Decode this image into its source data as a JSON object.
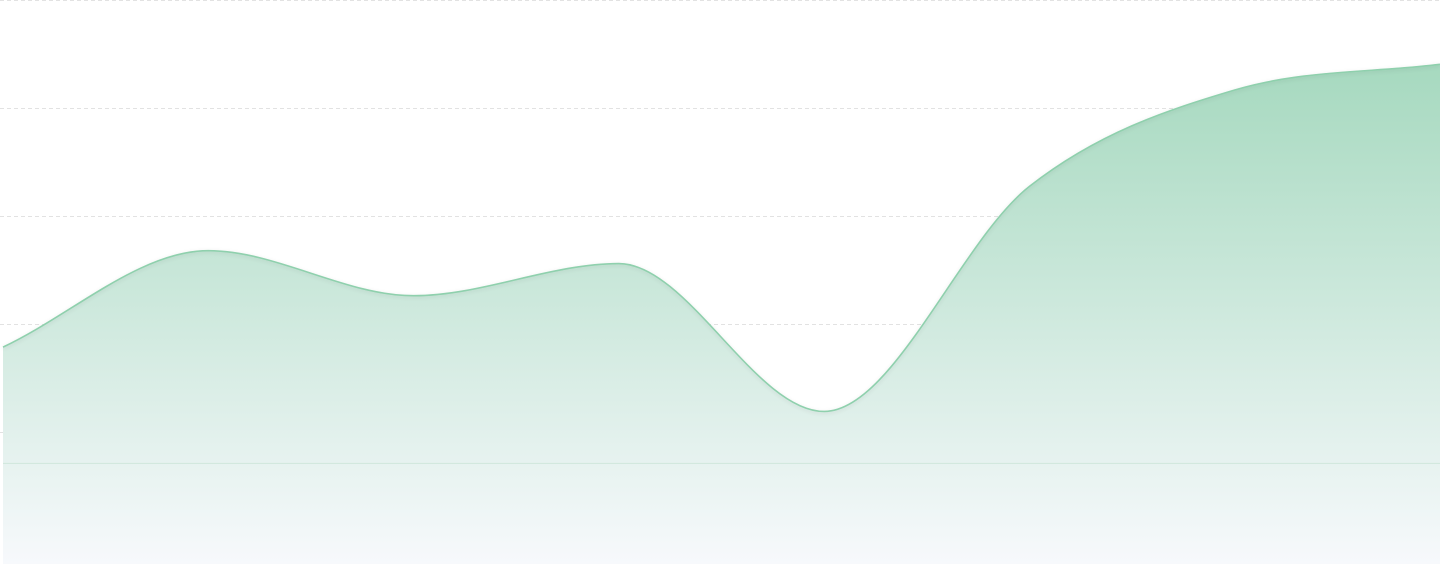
{
  "chart_data": {
    "type": "area",
    "x": [
      0,
      1,
      2,
      3,
      4,
      5,
      6,
      7
    ],
    "series": [
      {
        "values": [
          1.8,
          3.3,
          2.6,
          3.1,
          0.8,
          4.3,
          5.8,
          6.2
        ]
      }
    ],
    "ylim": [
      -1.2,
      7.2
    ],
    "grid": true,
    "legend": "none",
    "colors": {
      "line": "#8fd0ad",
      "fill_top": "#a6d9bf",
      "fill_bottom": "#f7f9fc",
      "grid": "#e2e2e2",
      "baseline": "#cfe6db"
    }
  }
}
